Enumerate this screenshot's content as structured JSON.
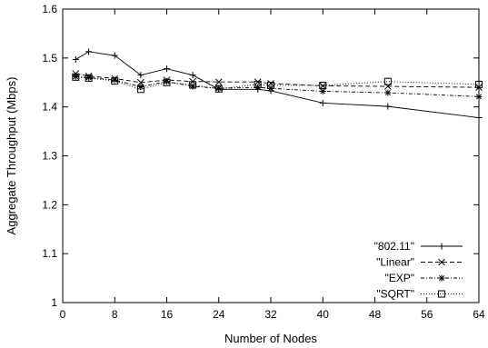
{
  "chart_data": {
    "type": "line",
    "title": "",
    "xlabel": "Number of Nodes",
    "ylabel": "Aggregate Throughput (Mbps)",
    "xlim": [
      0,
      64
    ],
    "ylim": [
      1,
      1.6
    ],
    "xticks": [
      0,
      8,
      16,
      24,
      32,
      40,
      48,
      56,
      64
    ],
    "yticks": [
      1,
      1.1,
      1.2,
      1.3,
      1.4,
      1.5,
      1.6
    ],
    "grid": false,
    "legend_position": "bottom-right",
    "series": [
      {
        "name": "\"802.11\"",
        "marker": "plus",
        "dash": "",
        "x": [
          2,
          4,
          8,
          12,
          16,
          20,
          24,
          30,
          32,
          40,
          50,
          64
        ],
        "y": [
          1.497,
          1.513,
          1.505,
          1.465,
          1.478,
          1.465,
          1.436,
          1.436,
          1.433,
          1.408,
          1.401,
          1.378
        ]
      },
      {
        "name": "\"Linear\"",
        "marker": "cross",
        "dash": "5,3",
        "x": [
          2,
          4,
          8,
          12,
          16,
          20,
          24,
          30,
          32,
          40,
          50,
          64
        ],
        "y": [
          1.468,
          1.463,
          1.458,
          1.45,
          1.455,
          1.452,
          1.451,
          1.451,
          1.448,
          1.443,
          1.442,
          1.44
        ]
      },
      {
        "name": "\"EXP\"",
        "marker": "star",
        "dash": "4,2,1,2",
        "x": [
          2,
          4,
          8,
          12,
          16,
          20,
          24,
          30,
          32,
          40,
          50,
          64
        ],
        "y": [
          1.462,
          1.46,
          1.455,
          1.441,
          1.452,
          1.442,
          1.438,
          1.44,
          1.438,
          1.432,
          1.429,
          1.421
        ]
      },
      {
        "name": "\"SQRT\"",
        "marker": "square",
        "dash": "1,2",
        "x": [
          2,
          4,
          8,
          12,
          16,
          20,
          24,
          30,
          32,
          40,
          50,
          64
        ],
        "y": [
          1.461,
          1.459,
          1.453,
          1.436,
          1.45,
          1.445,
          1.437,
          1.446,
          1.444,
          1.444,
          1.452,
          1.446
        ]
      }
    ]
  }
}
